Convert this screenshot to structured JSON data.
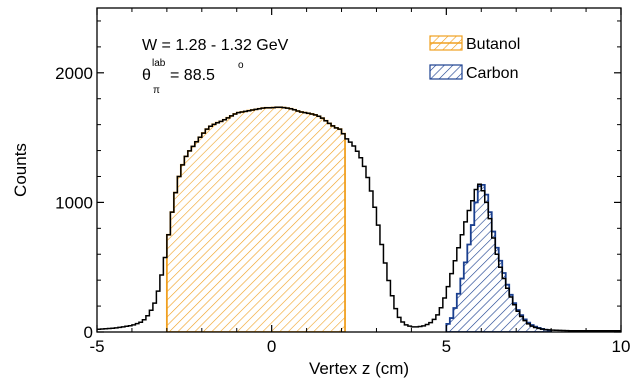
{
  "chart_data": {
    "type": "line",
    "xlabel": "Vertex z (cm)",
    "ylabel": "Counts",
    "xlim": [
      -5,
      10
    ],
    "ylim": [
      0,
      2500
    ],
    "x_ticks": [
      -5,
      0,
      5,
      10
    ],
    "y_ticks": [
      0,
      1000,
      2000
    ],
    "x_tick_labels": [
      "-5",
      "0",
      "5",
      "10"
    ],
    "y_tick_labels": [
      "0",
      "1000",
      "2000"
    ],
    "grid": false,
    "legend_position": "top-right",
    "annotations": {
      "w_range": "W = 1.28 - 1.32 GeV",
      "theta_symbol": "θ",
      "theta_superscript": "lab",
      "theta_subscript": "π",
      "theta_value": "= 88.5",
      "theta_degree": "o"
    },
    "colors": {
      "total": "#000000",
      "butanol": "#f0a020",
      "carbon": "#1a3f8f"
    },
    "series": [
      {
        "name": "",
        "style": "step-outline",
        "x": [
          -5.0,
          -4.5,
          -4.0,
          -3.7,
          -3.5,
          -3.3,
          -3.2,
          -3.1,
          -3.0,
          -2.9,
          -2.8,
          -2.7,
          -2.6,
          -2.5,
          -2.4,
          -2.2,
          -2.0,
          -1.8,
          -1.6,
          -1.4,
          -1.2,
          -1.0,
          -0.8,
          -0.6,
          -0.4,
          -0.2,
          0.0,
          0.2,
          0.4,
          0.6,
          0.8,
          1.0,
          1.2,
          1.4,
          1.6,
          1.8,
          2.0,
          2.1,
          2.2,
          2.4,
          2.6,
          2.8,
          3.0,
          3.2,
          3.4,
          3.6,
          3.8,
          4.0,
          4.2,
          4.4,
          4.6,
          4.8,
          5.0,
          5.2,
          5.4,
          5.6,
          5.8,
          5.9,
          6.0,
          6.1,
          6.2,
          6.3,
          6.4,
          6.6,
          6.8,
          7.0,
          7.2,
          7.4,
          7.6,
          7.8,
          8.0,
          8.5,
          9.0,
          9.5,
          10.0
        ],
        "y": [
          20,
          30,
          50,
          80,
          140,
          250,
          380,
          500,
          650,
          850,
          1000,
          1150,
          1250,
          1330,
          1380,
          1450,
          1520,
          1580,
          1610,
          1630,
          1660,
          1690,
          1700,
          1710,
          1720,
          1730,
          1730,
          1735,
          1730,
          1720,
          1700,
          1690,
          1680,
          1660,
          1620,
          1580,
          1560,
          1500,
          1480,
          1420,
          1320,
          1150,
          900,
          600,
          330,
          130,
          60,
          40,
          40,
          50,
          80,
          150,
          300,
          500,
          700,
          900,
          1050,
          1150,
          1130,
          1050,
          950,
          800,
          650,
          450,
          300,
          180,
          100,
          50,
          30,
          20,
          15,
          10,
          10,
          10,
          10
        ]
      },
      {
        "name": "Butanol",
        "style": "hatched-fill",
        "x": [
          -3.0,
          -2.9,
          -2.8,
          -2.7,
          -2.6,
          -2.5,
          -2.4,
          -2.2,
          -2.0,
          -1.8,
          -1.6,
          -1.4,
          -1.2,
          -1.0,
          -0.8,
          -0.6,
          -0.4,
          -0.2,
          0.0,
          0.2,
          0.4,
          0.6,
          0.8,
          1.0,
          1.2,
          1.4,
          1.6,
          1.8,
          2.0,
          2.1
        ],
        "y": [
          650,
          850,
          1000,
          1150,
          1250,
          1330,
          1380,
          1450,
          1520,
          1580,
          1610,
          1630,
          1660,
          1690,
          1700,
          1710,
          1720,
          1730,
          1730,
          1735,
          1730,
          1720,
          1700,
          1690,
          1680,
          1660,
          1620,
          1580,
          1560,
          1500
        ]
      },
      {
        "name": "Carbon",
        "style": "hatched-fill",
        "x": [
          5.0,
          5.2,
          5.4,
          5.6,
          5.8,
          5.9,
          6.0,
          6.1,
          6.2,
          6.3,
          6.4,
          6.6,
          6.8,
          7.0,
          7.2,
          7.4,
          7.6,
          7.8,
          8.0
        ],
        "y": [
          40,
          130,
          350,
          600,
          900,
          1100,
          1150,
          1120,
          1000,
          850,
          700,
          500,
          320,
          190,
          110,
          60,
          35,
          20,
          10
        ]
      }
    ]
  }
}
